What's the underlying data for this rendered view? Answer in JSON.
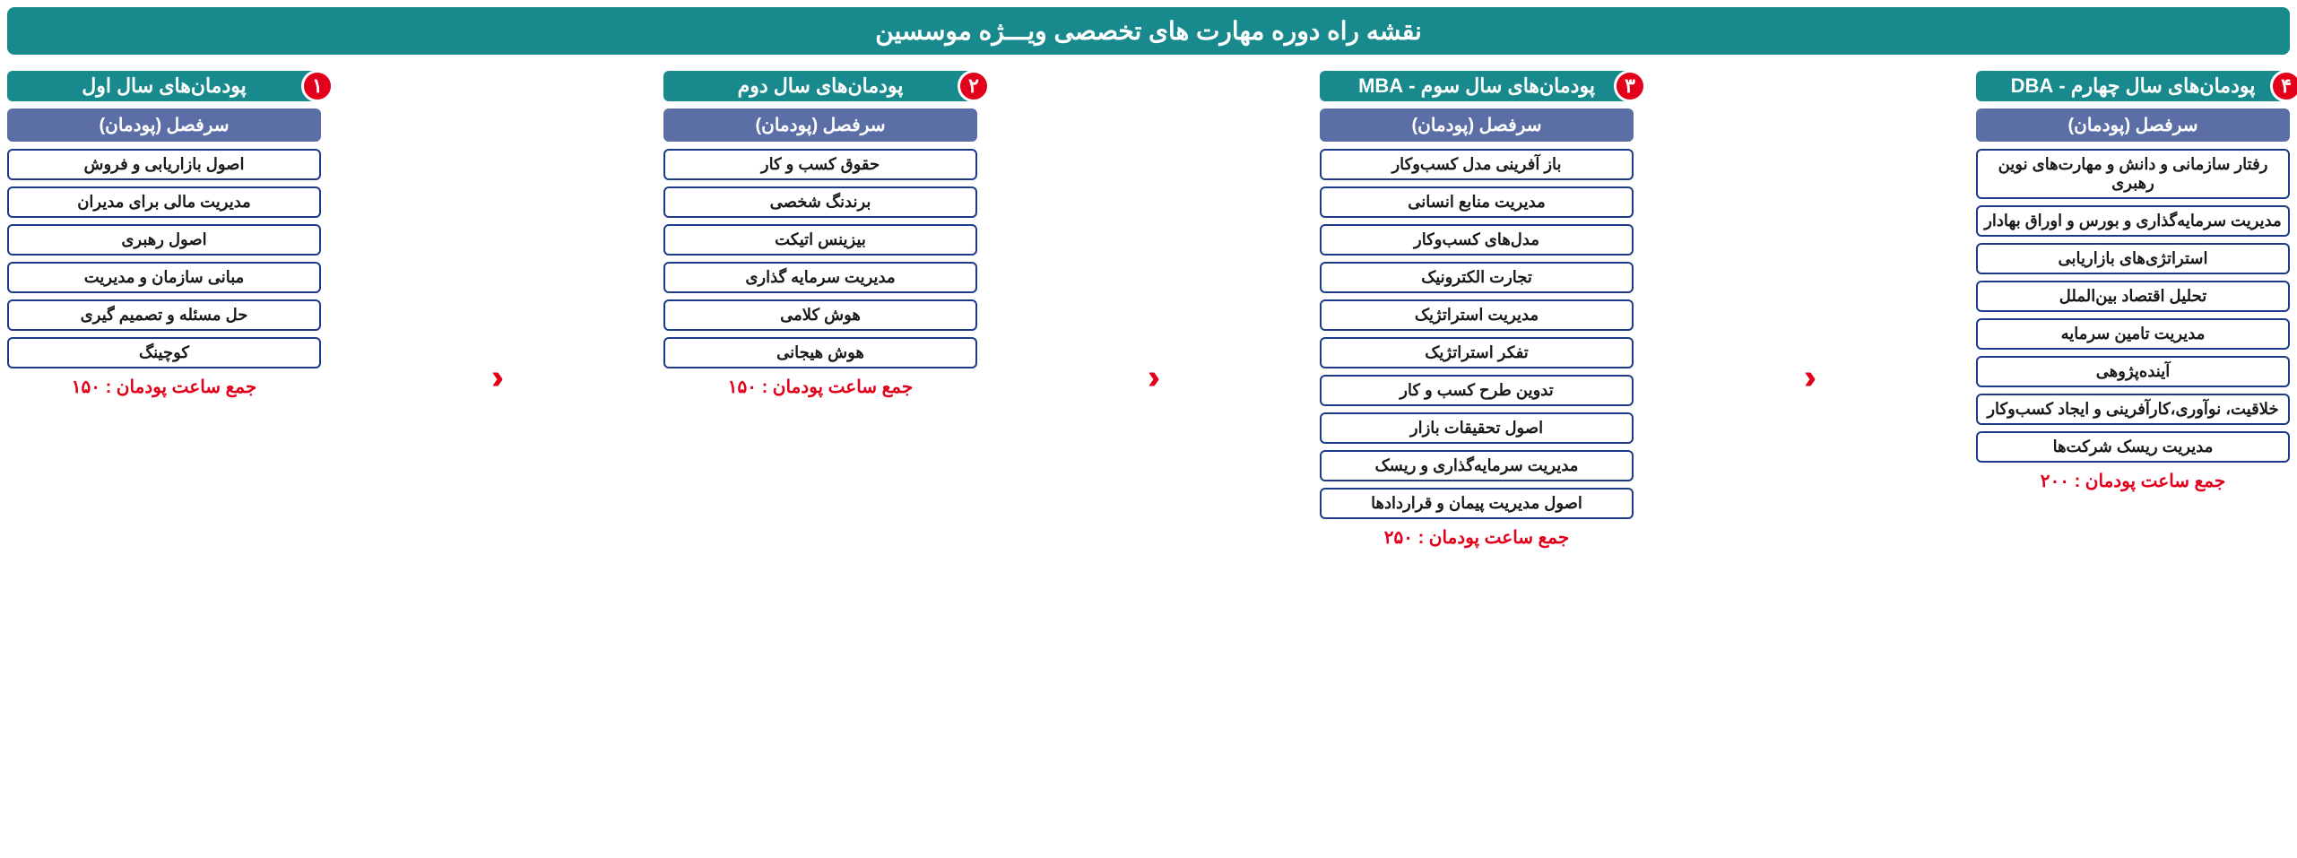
{
  "style": {
    "title_bg": "#188a8d",
    "title_fg": "#ffffff",
    "year_bg": "#188a8d",
    "year_fg": "#ffffff",
    "badge_bg": "#e2001a",
    "badge_fg": "#ffffff",
    "sub_bg": "#5b6ea5",
    "sub_fg": "#ffffff",
    "item_border": "#1b3a8a",
    "item_fg": "#1a1a1a",
    "total_fg": "#e2001a",
    "arrow_fg": "#e2001a"
  },
  "title": "نقشه راه دوره مهارت های تخصصی ویـــژه موسسین",
  "sub_header": "سرفصل (پودمان)",
  "arrow_glyph": "‹‹‹",
  "columns": [
    {
      "badge": "۱",
      "year_label": "پودمان‌های سال اول",
      "items": [
        "اصول بازاریابی و فروش",
        "مدیریت مالی برای مدیران",
        "اصول رهبری",
        "مبانی سازمان و مدیریت",
        "حل مسئله و تصمیم گیری",
        "کوچینگ"
      ],
      "total": "جمع ساعت پودمان : ۱۵۰"
    },
    {
      "badge": "۲",
      "year_label": "پودمان‌های سال دوم",
      "items": [
        "حقوق کسب و کار",
        "برندنگ شخصی",
        "بیزینس اتیکت",
        "مدیریت سرمایه گذاری",
        "هوش کلامی",
        "هوش هیجانی"
      ],
      "total": "جمع ساعت پودمان : ۱۵۰"
    },
    {
      "badge": "۳",
      "year_label": "پودمان‌های سال سوم - MBA",
      "items": [
        "باز آفرینی مدل کسب‌وکار",
        "مدیریت منابع انسانی",
        "مدل‌های کسب‌وکار",
        "تجارت الکترونیک",
        "مدیریت استراتژیک",
        "تفکر استراتژیک",
        "تدوین طرح کسب و کار",
        "اصول تحقیقات بازار",
        "مدیریت سرمایه‌گذاری و ریسک",
        "اصول مدیریت پیمان و قراردادها"
      ],
      "total": "جمع ساعت پودمان : ۲۵۰"
    },
    {
      "badge": "۴",
      "year_label": "پودمان‌های سال چهارم  - DBA",
      "items": [
        "رفتار سازمانی و دانش و مهارت‌های نوین رهبری",
        "مدیریت سرمایه‌گذاری و بورس و اوراق بهادار",
        "استراتژی‌های بازاریابی",
        "تحلیل اقتصاد بین‌الملل",
        "مدیریت تامین سرمایه",
        "آینده‌پژوهی",
        "خلاقیت، نوآوری،کارآفرینی و ایجاد کسب‌وکار",
        "مدیریت ریسک شرکت‌ها"
      ],
      "total": "جمع ساعت پودمان : ۲۰۰"
    }
  ]
}
